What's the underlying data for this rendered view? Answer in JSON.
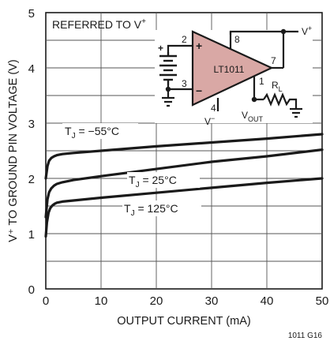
{
  "chart_data": {
    "type": "line",
    "title": "",
    "xlabel": "OUTPUT CURRENT (mA)",
    "ylabel": "V⁺ TO GROUND PIN VOLTAGE (V)",
    "xlim": [
      0,
      50
    ],
    "ylim": [
      0,
      5
    ],
    "xticks": [
      "0",
      "10",
      "20",
      "30",
      "40",
      "50"
    ],
    "yticks": [
      "0",
      "1",
      "2",
      "3",
      "4",
      "5"
    ],
    "grid": true,
    "annotation": {
      "prefix": "REFERRED TO V",
      "superscript": "+"
    },
    "series": [
      {
        "name": "T",
        "name_sub": "J",
        "name_rest": " = −55°C",
        "x": [
          0,
          0.3,
          0.6,
          1,
          1.5,
          2,
          3,
          5,
          10,
          20,
          30,
          40,
          50
        ],
        "y": [
          2.0,
          2.22,
          2.32,
          2.37,
          2.4,
          2.42,
          2.44,
          2.46,
          2.5,
          2.58,
          2.65,
          2.72,
          2.8
        ]
      },
      {
        "name": "T",
        "name_sub": "J",
        "name_rest": " = 25°C",
        "x": [
          0,
          0.3,
          0.6,
          1,
          1.5,
          2,
          3,
          5,
          10,
          20,
          30,
          40,
          50
        ],
        "y": [
          1.3,
          1.62,
          1.75,
          1.82,
          1.87,
          1.9,
          1.93,
          1.97,
          2.04,
          2.17,
          2.3,
          2.4,
          2.52
        ]
      },
      {
        "name": "T",
        "name_sub": "J",
        "name_rest": " = 125°C",
        "x": [
          0,
          0.2,
          0.5,
          0.8,
          1.2,
          1.6,
          2,
          3,
          5,
          10,
          20,
          30,
          40,
          50
        ],
        "y": [
          0.95,
          1.2,
          1.38,
          1.46,
          1.51,
          1.54,
          1.56,
          1.58,
          1.6,
          1.65,
          1.74,
          1.83,
          1.92,
          2.0
        ]
      }
    ]
  },
  "inset": {
    "opamp_label": "LT1011",
    "pins": [
      "2",
      "3",
      "4",
      "7",
      "8",
      "1"
    ],
    "plus_sign": "+",
    "minus_sign": "−",
    "vplus": "V",
    "vplus_sup": "+",
    "vminus": "V",
    "vminus_sup": "−",
    "vout": "V",
    "vout_sub": "OUT",
    "rl": "R",
    "rl_sub": "L"
  },
  "figure_id": "1011 G16"
}
